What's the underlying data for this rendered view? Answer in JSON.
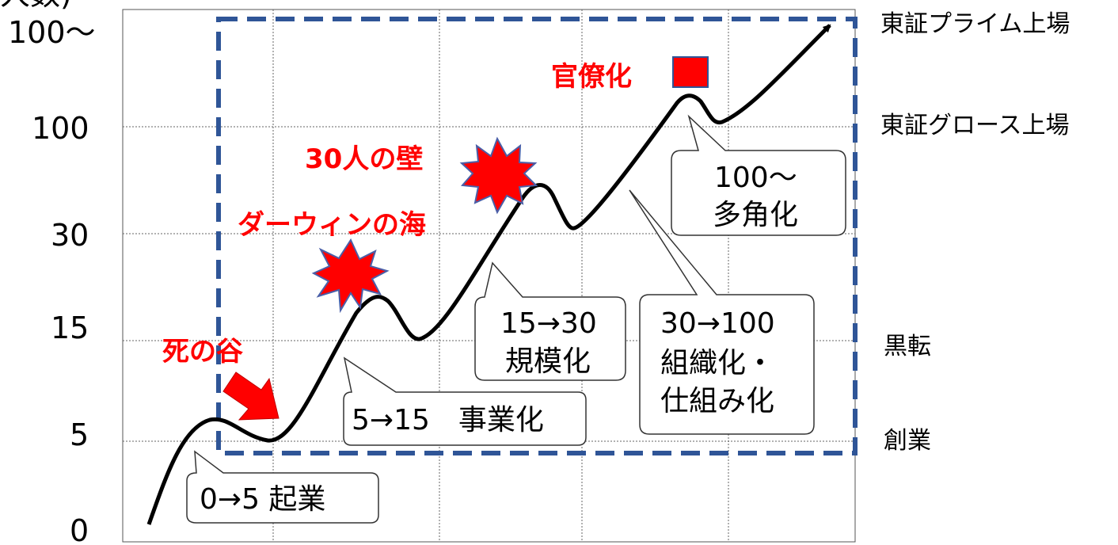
{
  "y_axis": {
    "top_fragment": "人数)",
    "ticks": [
      "100〜",
      "100",
      "30",
      "15",
      "5",
      "0"
    ]
  },
  "right_labels": [
    "東証プライム上場",
    "東証グロース上場",
    "黒転",
    "創業"
  ],
  "callouts": {
    "c1": [
      "0→5  起業"
    ],
    "c2": [
      "5→15　事業化"
    ],
    "c3": [
      "15→30",
      "規模化"
    ],
    "c4": [
      "30→100",
      "組織化・",
      "仕組み化"
    ],
    "c5": [
      "100〜",
      "多角化"
    ]
  },
  "red_labels": {
    "valley": "死の谷",
    "darwin": "ダーウィンの海",
    "wall": "30人の壁",
    "bureau": "官僚化"
  },
  "colors": {
    "accent_red": "#ff0000",
    "frame_blue": "#2f5597",
    "burst_fill": "#ff0000",
    "burst_stroke": "#4a5fa8"
  }
}
